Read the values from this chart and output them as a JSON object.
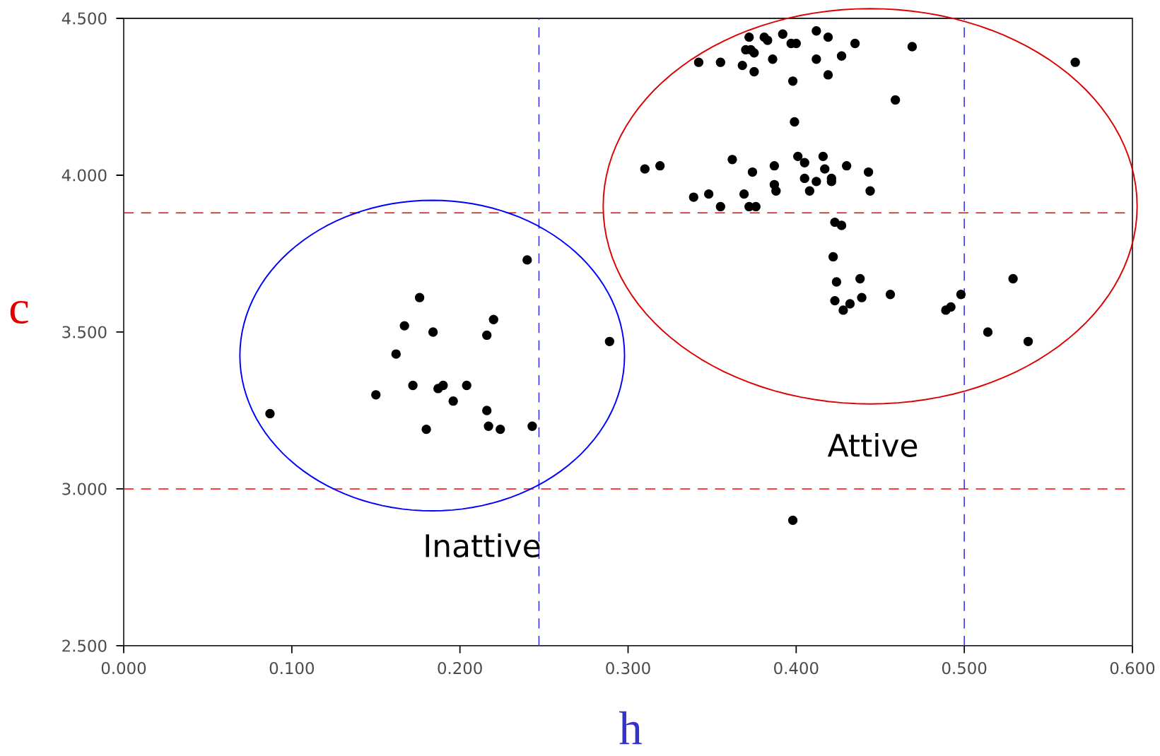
{
  "chart_data": {
    "type": "scatter",
    "xlabel": "h",
    "ylabel": "c",
    "xlim": [
      0,
      0.6
    ],
    "ylim": [
      2.5,
      4.5
    ],
    "xticks": [
      {
        "value": 0,
        "label": "0.000"
      },
      {
        "value": 0.1,
        "label": "0.100"
      },
      {
        "value": 0.2,
        "label": "0.200"
      },
      {
        "value": 0.3,
        "label": "0.300"
      },
      {
        "value": 0.4,
        "label": "0.400"
      },
      {
        "value": 0.5,
        "label": "0.500"
      },
      {
        "value": 0.6,
        "label": "0.600"
      }
    ],
    "yticks": [
      {
        "value": 2.5,
        "label": "2.500"
      },
      {
        "value": 3.0,
        "label": "3.000"
      },
      {
        "value": 3.5,
        "label": "3.500"
      },
      {
        "value": 4.0,
        "label": "4.000"
      },
      {
        "value": 4.5,
        "label": "4.500"
      }
    ],
    "grid": false,
    "marker": "circle",
    "series": [
      {
        "color": "#000000",
        "x": [
          0.087,
          0.15,
          0.162,
          0.167,
          0.176,
          0.172,
          0.18,
          0.184,
          0.187,
          0.19,
          0.196,
          0.204,
          0.216,
          0.22,
          0.216,
          0.217,
          0.224,
          0.243,
          0.24,
          0.289,
          0.342,
          0.355,
          0.372,
          0.37,
          0.373,
          0.375,
          0.368,
          0.375,
          0.381,
          0.383,
          0.386,
          0.392,
          0.397,
          0.4,
          0.398,
          0.412,
          0.419,
          0.412,
          0.419,
          0.427,
          0.435,
          0.469,
          0.459,
          0.566,
          0.399,
          0.31,
          0.319,
          0.339,
          0.348,
          0.355,
          0.362,
          0.369,
          0.374,
          0.372,
          0.376,
          0.387,
          0.387,
          0.388,
          0.401,
          0.405,
          0.405,
          0.408,
          0.412,
          0.416,
          0.417,
          0.421,
          0.421,
          0.43,
          0.443,
          0.444,
          0.423,
          0.427,
          0.422,
          0.424,
          0.438,
          0.423,
          0.428,
          0.432,
          0.439,
          0.456,
          0.489,
          0.492,
          0.498,
          0.514,
          0.529,
          0.538,
          0.398
        ],
        "values": [
          3.24,
          3.3,
          3.43,
          3.52,
          3.61,
          3.33,
          3.19,
          3.5,
          3.32,
          3.33,
          3.28,
          3.33,
          3.49,
          3.54,
          3.25,
          3.2,
          3.19,
          3.2,
          3.73,
          3.47,
          4.36,
          4.36,
          4.44,
          4.4,
          4.4,
          4.39,
          4.35,
          4.33,
          4.44,
          4.43,
          4.37,
          4.45,
          4.42,
          4.42,
          4.3,
          4.46,
          4.44,
          4.37,
          4.32,
          4.38,
          4.42,
          4.41,
          4.24,
          4.36,
          4.17,
          4.02,
          4.03,
          3.93,
          3.94,
          3.9,
          4.05,
          3.94,
          4.01,
          3.9,
          3.9,
          4.03,
          3.97,
          3.95,
          4.06,
          4.04,
          3.99,
          3.95,
          3.98,
          4.06,
          4.02,
          3.99,
          3.98,
          4.03,
          4.01,
          3.95,
          3.85,
          3.84,
          3.74,
          3.66,
          3.67,
          3.6,
          3.57,
          3.59,
          3.61,
          3.62,
          3.57,
          3.58,
          3.62,
          3.5,
          3.67,
          3.47,
          2.9
        ]
      }
    ],
    "ref_lines": [
      {
        "axis": "y",
        "value": 3.88,
        "color": "#ff0000",
        "line_style": "dashed"
      },
      {
        "axis": "y",
        "value": 3.0,
        "color": "#ff0000",
        "line_style": "dashed"
      },
      {
        "axis": "x",
        "value": 0.247,
        "color": "#3333dd",
        "line_style": "dashed"
      },
      {
        "axis": "x",
        "value": 0.5,
        "color": "#3333dd",
        "line_style": "dashed"
      }
    ],
    "annotations": [
      "Attive",
      "Inattive"
    ]
  }
}
